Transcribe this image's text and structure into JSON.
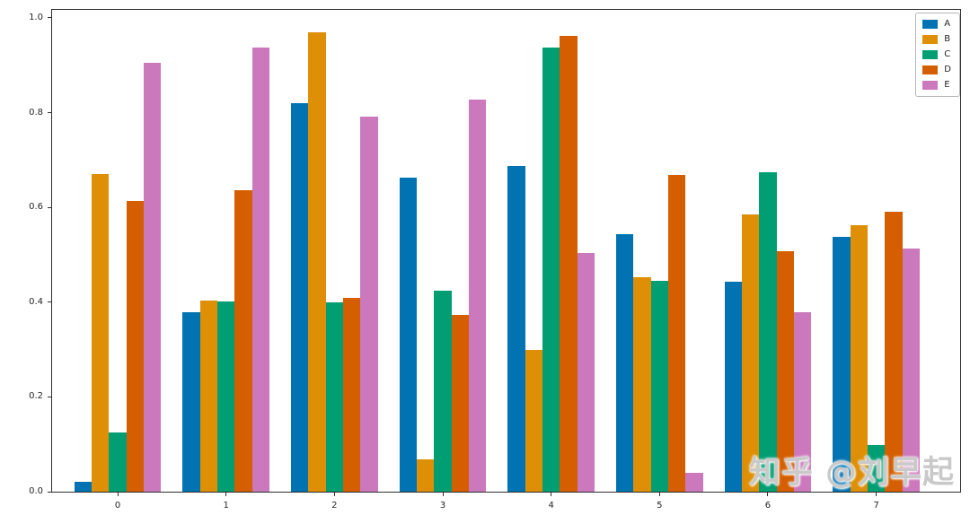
{
  "figure": {
    "background": "#ffffff"
  },
  "watermark": {
    "text": "知乎 @刘早起",
    "color": "#c9c9c9"
  },
  "chart_data": {
    "type": "bar",
    "title": "",
    "xlabel": "",
    "ylabel": "",
    "categories": [
      "0",
      "1",
      "2",
      "3",
      "4",
      "5",
      "6",
      "7"
    ],
    "series": [
      {
        "name": "A",
        "color": "#0173b2",
        "values": [
          0.021,
          0.379,
          0.821,
          0.663,
          0.687,
          0.543,
          0.443,
          0.538
        ]
      },
      {
        "name": "B",
        "color": "#de8f05",
        "values": [
          0.67,
          0.404,
          0.97,
          0.068,
          0.3,
          0.453,
          0.586,
          0.563
        ]
      },
      {
        "name": "C",
        "color": "#029e73",
        "values": [
          0.125,
          0.401,
          0.4,
          0.424,
          0.937,
          0.446,
          0.674,
          0.098
        ]
      },
      {
        "name": "D",
        "color": "#d55e00",
        "values": [
          0.613,
          0.636,
          0.41,
          0.373,
          0.962,
          0.668,
          0.508,
          0.591
        ]
      },
      {
        "name": "E",
        "color": "#cc78bc",
        "values": [
          0.906,
          0.937,
          0.791,
          0.827,
          0.503,
          0.039,
          0.379,
          0.513
        ]
      }
    ],
    "ylim": [
      0,
      1.017
    ],
    "ytick_values": [
      0,
      0.2,
      0.4,
      0.6,
      0.8,
      1.0
    ],
    "ytick_labels": [
      "0.0",
      "0.2",
      "0.4",
      "0.6",
      "0.8",
      "1.0"
    ],
    "xtick_labels": [
      "0",
      "1",
      "2",
      "3",
      "4",
      "5",
      "6",
      "7"
    ],
    "grid": false,
    "legend": {
      "position": "upper right",
      "entries": [
        "A",
        "B",
        "C",
        "D",
        "E"
      ]
    },
    "bar_group_width_fraction": 0.8
  }
}
